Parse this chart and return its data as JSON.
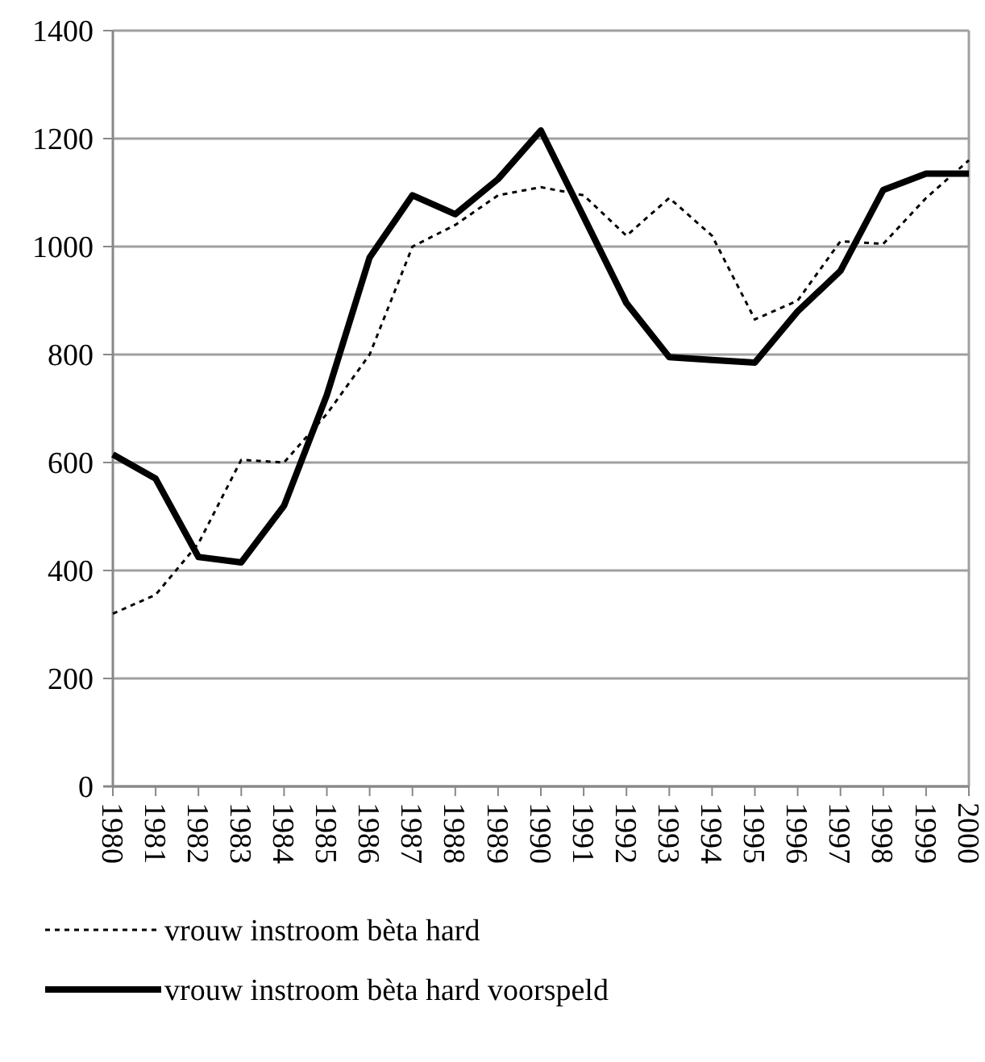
{
  "chart_data": {
    "type": "line",
    "categories": [
      "1980",
      "1981",
      "1982",
      "1983",
      "1984",
      "1985",
      "1986",
      "1987",
      "1988",
      "1989",
      "1990",
      "1991",
      "1992",
      "1993",
      "1994",
      "1995",
      "1996",
      "1997",
      "1998",
      "1999",
      "2000"
    ],
    "series": [
      {
        "name": "vrouw instroom bèta hard",
        "color": "#000000",
        "line_style": "dotted",
        "values": [
          320,
          355,
          450,
          605,
          600,
          690,
          800,
          1000,
          1040,
          1095,
          1110,
          1095,
          1020,
          1090,
          1020,
          865,
          900,
          1010,
          1005,
          1090,
          1160
        ]
      },
      {
        "name": "vrouw instroom bèta hard voorspeld",
        "color": "#000000",
        "line_style": "solid",
        "values": [
          615,
          570,
          425,
          415,
          520,
          725,
          980,
          1095,
          1060,
          1125,
          1215,
          1055,
          895,
          795,
          790,
          785,
          880,
          955,
          1105,
          1135,
          1135
        ]
      }
    ],
    "ylim": [
      0,
      1400
    ],
    "yticks": [
      0,
      200,
      400,
      600,
      800,
      1000,
      1200,
      1400
    ],
    "grid": "y",
    "legend": "bottom"
  }
}
